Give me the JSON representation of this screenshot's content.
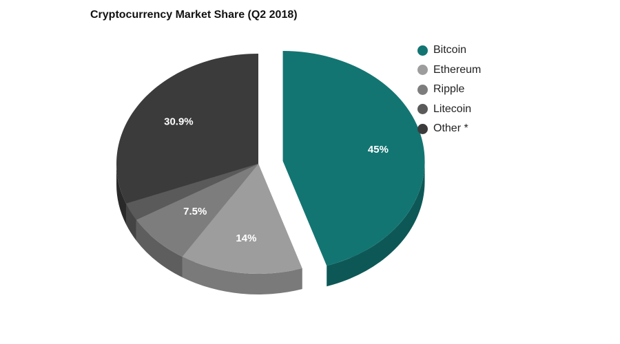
{
  "chart_data": {
    "type": "pie",
    "title": "Cryptocurrency Market Share (Q2 2018)",
    "legend_position": "right",
    "exploded_slice": "Bitcoin",
    "slices": [
      {
        "name": "Bitcoin",
        "value": 45,
        "label": "45%",
        "color": "#137572",
        "side_color": "#0d5856"
      },
      {
        "name": "Ethereum",
        "value": 14,
        "label": "14%",
        "color": "#9d9d9d",
        "side_color": "#7a7a7a"
      },
      {
        "name": "Ripple",
        "value": 7.5,
        "label": "7.5%",
        "color": "#7d7d7d",
        "side_color": "#5e5e5e"
      },
      {
        "name": "Litecoin",
        "value": 2.6,
        "label": "",
        "color": "#5b5a5a",
        "side_color": "#454444"
      },
      {
        "name": "Other *",
        "value": 30.9,
        "label": "30.9%",
        "color": "#3c3b3b",
        "side_color": "#2a2929"
      }
    ]
  }
}
